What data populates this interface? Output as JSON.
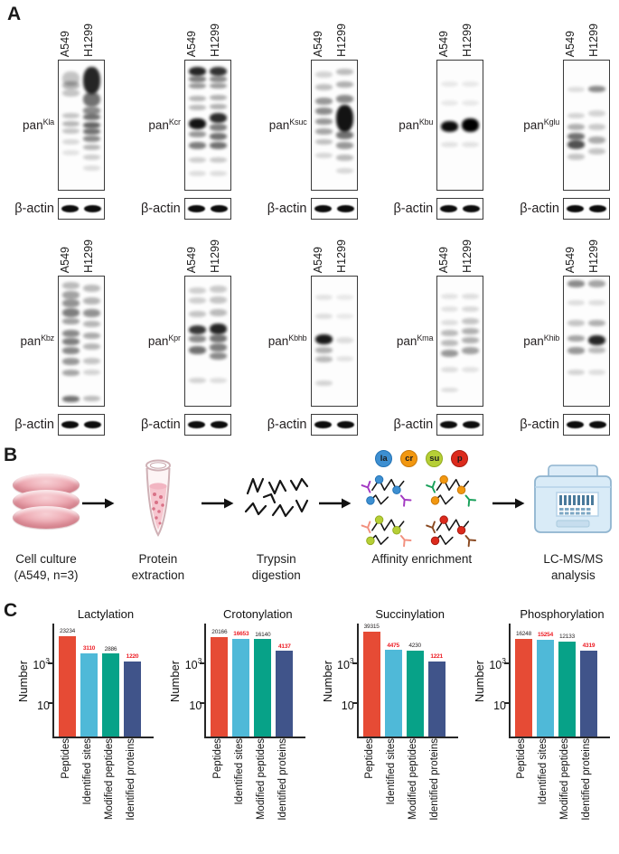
{
  "figure": {
    "panel_a_letter": "A",
    "panel_b_letter": "B",
    "panel_c_letter": "C"
  },
  "panel_a": {
    "lane_labels": [
      "A549",
      "H1299"
    ],
    "loading_control_label": "β-actin",
    "blots": [
      {
        "base": "pan",
        "sup": "Kla",
        "a549": [
          [
            0.08,
            0.22,
            16
          ],
          [
            0.16,
            0.28,
            9
          ],
          [
            0.22,
            0.22,
            8
          ],
          [
            0.4,
            0.22,
            6
          ],
          [
            0.46,
            0.28,
            6
          ],
          [
            0.52,
            0.22,
            6
          ],
          [
            0.6,
            0.14,
            6
          ],
          [
            0.68,
            0.1,
            6
          ]
        ],
        "h1299": [
          [
            0.05,
            0.85,
            30
          ],
          [
            0.24,
            0.55,
            16
          ],
          [
            0.35,
            0.45,
            9
          ],
          [
            0.41,
            0.55,
            7
          ],
          [
            0.47,
            0.6,
            7
          ],
          [
            0.52,
            0.55,
            7
          ],
          [
            0.57,
            0.45,
            7
          ],
          [
            0.64,
            0.28,
            6
          ],
          [
            0.72,
            0.18,
            6
          ],
          [
            0.8,
            0.12,
            6
          ]
        ]
      },
      {
        "base": "pan",
        "sup": "Kcr",
        "a549": [
          [
            0.05,
            0.85,
            10
          ],
          [
            0.12,
            0.5,
            7
          ],
          [
            0.17,
            0.4,
            6
          ],
          [
            0.27,
            0.28,
            6
          ],
          [
            0.34,
            0.26,
            6
          ],
          [
            0.44,
            0.92,
            12
          ],
          [
            0.54,
            0.4,
            7
          ],
          [
            0.62,
            0.5,
            8
          ],
          [
            0.74,
            0.18,
            6
          ],
          [
            0.84,
            0.12,
            6
          ]
        ],
        "h1299": [
          [
            0.05,
            0.8,
            10
          ],
          [
            0.12,
            0.45,
            7
          ],
          [
            0.17,
            0.38,
            6
          ],
          [
            0.26,
            0.3,
            6
          ],
          [
            0.33,
            0.3,
            6
          ],
          [
            0.4,
            0.82,
            11
          ],
          [
            0.48,
            0.5,
            8
          ],
          [
            0.55,
            0.55,
            8
          ],
          [
            0.62,
            0.55,
            8
          ],
          [
            0.74,
            0.2,
            6
          ],
          [
            0.84,
            0.12,
            6
          ]
        ]
      },
      {
        "base": "pan",
        "sup": "Ksuc",
        "a549": [
          [
            0.08,
            0.16,
            7
          ],
          [
            0.18,
            0.24,
            7
          ],
          [
            0.28,
            0.4,
            8
          ],
          [
            0.36,
            0.45,
            8
          ],
          [
            0.44,
            0.4,
            7
          ],
          [
            0.52,
            0.34,
            7
          ],
          [
            0.6,
            0.24,
            6
          ],
          [
            0.7,
            0.15,
            6
          ]
        ],
        "h1299": [
          [
            0.06,
            0.25,
            7
          ],
          [
            0.16,
            0.3,
            7
          ],
          [
            0.26,
            0.45,
            9
          ],
          [
            0.34,
            0.92,
            30
          ],
          [
            0.54,
            0.55,
            9
          ],
          [
            0.62,
            0.4,
            8
          ],
          [
            0.72,
            0.26,
            7
          ],
          [
            0.82,
            0.15,
            6
          ]
        ]
      },
      {
        "base": "pan",
        "sup": "Kbu",
        "a549": [
          [
            0.16,
            0.08,
            6
          ],
          [
            0.3,
            0.08,
            6
          ],
          [
            0.46,
            0.95,
            12
          ],
          [
            0.62,
            0.1,
            6
          ]
        ],
        "h1299": [
          [
            0.16,
            0.08,
            6
          ],
          [
            0.3,
            0.08,
            6
          ],
          [
            0.44,
            1.0,
            15
          ],
          [
            0.62,
            0.1,
            6
          ]
        ]
      },
      {
        "base": "pan",
        "sup": "Kglu",
        "a549": [
          [
            0.2,
            0.12,
            6
          ],
          [
            0.4,
            0.16,
            6
          ],
          [
            0.48,
            0.3,
            7
          ],
          [
            0.55,
            0.55,
            8
          ],
          [
            0.61,
            0.68,
            10
          ],
          [
            0.71,
            0.22,
            7
          ]
        ],
        "h1299": [
          [
            0.19,
            0.45,
            7
          ],
          [
            0.38,
            0.16,
            7
          ],
          [
            0.48,
            0.2,
            7
          ],
          [
            0.58,
            0.32,
            8
          ],
          [
            0.67,
            0.22,
            7
          ]
        ]
      },
      {
        "base": "pan",
        "sup": "Kbz",
        "a549": [
          [
            0.04,
            0.26,
            8
          ],
          [
            0.11,
            0.36,
            9
          ],
          [
            0.17,
            0.42,
            9
          ],
          [
            0.24,
            0.5,
            10
          ],
          [
            0.32,
            0.36,
            7
          ],
          [
            0.41,
            0.46,
            8
          ],
          [
            0.47,
            0.5,
            8
          ],
          [
            0.54,
            0.46,
            8
          ],
          [
            0.62,
            0.4,
            8
          ],
          [
            0.71,
            0.34,
            7
          ],
          [
            0.91,
            0.55,
            7
          ]
        ],
        "h1299": [
          [
            0.06,
            0.26,
            8
          ],
          [
            0.16,
            0.28,
            8
          ],
          [
            0.25,
            0.42,
            9
          ],
          [
            0.34,
            0.28,
            7
          ],
          [
            0.43,
            0.32,
            7
          ],
          [
            0.51,
            0.28,
            7
          ],
          [
            0.62,
            0.22,
            7
          ],
          [
            0.71,
            0.16,
            6
          ],
          [
            0.91,
            0.26,
            6
          ]
        ]
      },
      {
        "base": "pan",
        "sup": "Kpr",
        "a549": [
          [
            0.08,
            0.18,
            7
          ],
          [
            0.16,
            0.18,
            7
          ],
          [
            0.26,
            0.22,
            7
          ],
          [
            0.37,
            0.78,
            10
          ],
          [
            0.45,
            0.45,
            8
          ],
          [
            0.53,
            0.55,
            9
          ],
          [
            0.77,
            0.16,
            6
          ]
        ],
        "h1299": [
          [
            0.07,
            0.2,
            8
          ],
          [
            0.15,
            0.22,
            8
          ],
          [
            0.25,
            0.26,
            8
          ],
          [
            0.36,
            0.85,
            12
          ],
          [
            0.44,
            0.55,
            9
          ],
          [
            0.51,
            0.5,
            9
          ],
          [
            0.58,
            0.45,
            8
          ],
          [
            0.77,
            0.12,
            6
          ]
        ]
      },
      {
        "base": "pan",
        "sup": "Kbhb",
        "a549": [
          [
            0.14,
            0.1,
            6
          ],
          [
            0.28,
            0.12,
            6
          ],
          [
            0.44,
            0.9,
            11
          ],
          [
            0.54,
            0.3,
            7
          ],
          [
            0.61,
            0.26,
            7
          ],
          [
            0.79,
            0.16,
            6
          ]
        ],
        "h1299": [
          [
            0.14,
            0.08,
            6
          ],
          [
            0.28,
            0.08,
            6
          ],
          [
            0.46,
            0.12,
            7
          ],
          [
            0.61,
            0.1,
            6
          ]
        ]
      },
      {
        "base": "pan",
        "sup": "Kma",
        "a549": [
          [
            0.13,
            0.1,
            6
          ],
          [
            0.23,
            0.1,
            6
          ],
          [
            0.33,
            0.12,
            6
          ],
          [
            0.41,
            0.26,
            7
          ],
          [
            0.48,
            0.26,
            7
          ],
          [
            0.56,
            0.4,
            8
          ],
          [
            0.69,
            0.12,
            6
          ],
          [
            0.85,
            0.12,
            5
          ]
        ],
        "h1299": [
          [
            0.13,
            0.12,
            6
          ],
          [
            0.23,
            0.14,
            6
          ],
          [
            0.32,
            0.22,
            7
          ],
          [
            0.39,
            0.3,
            7
          ],
          [
            0.46,
            0.3,
            7
          ],
          [
            0.54,
            0.36,
            8
          ],
          [
            0.69,
            0.1,
            6
          ]
        ]
      },
      {
        "base": "pan",
        "sup": "Khib",
        "a549": [
          [
            0.03,
            0.45,
            8
          ],
          [
            0.18,
            0.12,
            6
          ],
          [
            0.33,
            0.22,
            7
          ],
          [
            0.45,
            0.35,
            7
          ],
          [
            0.54,
            0.4,
            8
          ],
          [
            0.71,
            0.16,
            6
          ]
        ],
        "h1299": [
          [
            0.03,
            0.35,
            8
          ],
          [
            0.18,
            0.12,
            6
          ],
          [
            0.33,
            0.3,
            7
          ],
          [
            0.45,
            0.85,
            11
          ],
          [
            0.54,
            0.26,
            7
          ],
          [
            0.71,
            0.12,
            6
          ]
        ]
      }
    ]
  },
  "panel_b": {
    "steps": [
      {
        "name": "cell-culture",
        "label_lines": [
          "Cell culture",
          "(A549, n=3)"
        ]
      },
      {
        "name": "protein-extraction",
        "label_lines": [
          "Protein extraction"
        ]
      },
      {
        "name": "trypsin-digestion",
        "label_lines": [
          "Trypsin digestion"
        ]
      },
      {
        "name": "affinity-enrichment",
        "label_lines": [
          "Affinity enrichment"
        ]
      },
      {
        "name": "lc-ms-ms-analysis",
        "label_lines": [
          "LC-MS/MS analysis"
        ]
      }
    ],
    "ptm_tags": [
      {
        "label": "la",
        "color": "#3d8fd1",
        "border": "#2272b5"
      },
      {
        "label": "cr",
        "color": "#f2970f",
        "border": "#c9790a"
      },
      {
        "label": "su",
        "color": "#b6cf36",
        "border": "#93ab1f"
      },
      {
        "label": "p",
        "color": "#dc2a1c",
        "border": "#a81d13"
      }
    ]
  },
  "panel_c": {
    "ylabel": "Number"
  },
  "chart_data": [
    {
      "type": "bar",
      "title": "Lactylation",
      "ylabel": "Number",
      "yscale": "log",
      "categories": [
        "Peptides",
        "Identified sites",
        "Modified peptides",
        "Identified proteins"
      ],
      "values": [
        23234,
        3110,
        2886,
        1220
      ],
      "value_label_colors": [
        "#231f20",
        "#ed1c24",
        "#231f20",
        "#ed1c24"
      ],
      "bar_colors": [
        "#e64b35",
        "#4fb9d8",
        "#07a288",
        "#40548a"
      ],
      "yticks": [
        {
          "value": 1000,
          "base": "10",
          "sup": "3"
        },
        {
          "value": 10,
          "base": "10",
          "sup": ""
        }
      ]
    },
    {
      "type": "bar",
      "title": "Crotonylation",
      "ylabel": "Number",
      "yscale": "log",
      "categories": [
        "Peptides",
        "Identified sites",
        "Modified peptides",
        "Identified proteins"
      ],
      "values": [
        20166,
        16653,
        16140,
        4137
      ],
      "value_label_colors": [
        "#231f20",
        "#ed1c24",
        "#231f20",
        "#ed1c24"
      ],
      "bar_colors": [
        "#e64b35",
        "#4fb9d8",
        "#07a288",
        "#40548a"
      ],
      "yticks": [
        {
          "value": 1000,
          "base": "10",
          "sup": "3"
        },
        {
          "value": 10,
          "base": "10",
          "sup": ""
        }
      ]
    },
    {
      "type": "bar",
      "title": "Succinylation",
      "ylabel": "Number",
      "yscale": "log",
      "categories": [
        "Peptides",
        "Identified sites",
        "Modified peptides",
        "Identified proteins"
      ],
      "values": [
        39315,
        4475,
        4230,
        1221
      ],
      "value_label_colors": [
        "#231f20",
        "#ed1c24",
        "#231f20",
        "#ed1c24"
      ],
      "bar_colors": [
        "#e64b35",
        "#4fb9d8",
        "#07a288",
        "#40548a"
      ],
      "yticks": [
        {
          "value": 1000,
          "base": "10",
          "sup": "3"
        },
        {
          "value": 10,
          "base": "10",
          "sup": ""
        }
      ]
    },
    {
      "type": "bar",
      "title": "Phosphorylation",
      "ylabel": "Number",
      "yscale": "log",
      "categories": [
        "Peptides",
        "Identified sites",
        "Modified peptides",
        "Identified proteins"
      ],
      "values": [
        16248,
        15254,
        12133,
        4319
      ],
      "value_label_colors": [
        "#231f20",
        "#ed1c24",
        "#231f20",
        "#ed1c24"
      ],
      "bar_colors": [
        "#e64b35",
        "#4fb9d8",
        "#07a288",
        "#40548a"
      ],
      "yticks": [
        {
          "value": 1000,
          "base": "10",
          "sup": "3"
        },
        {
          "value": 10,
          "base": "10",
          "sup": ""
        }
      ]
    }
  ]
}
